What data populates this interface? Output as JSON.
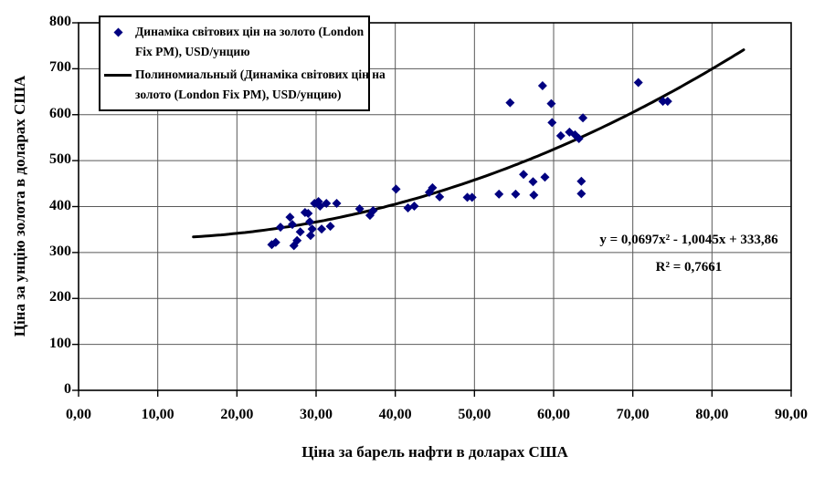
{
  "figure": {
    "x_axis_title": "Ціна за барель нафти в доларах США",
    "y_axis_title": "Ціна за унцію золота в доларах США",
    "equation_line1": "y = 0,0697x² - 1,0045x + 333,86",
    "equation_line2": "R² = 0,7661",
    "legend": {
      "item1": {
        "marker": "diamond-icon",
        "lines": [
          "Динаміка світових цін на золото (London",
          "Fix PM), USD/унцию"
        ]
      },
      "item2": {
        "marker": "trendline-icon",
        "lines": [
          "Полиномиальный (Динаміка світових цін на",
          "золото (London Fix PM), USD/унцию)"
        ]
      }
    }
  },
  "chart_data": {
    "type": "scatter",
    "title": "",
    "xlabel": "Ціна за барель нафти в доларах США",
    "ylabel": "Ціна за унцію золота в доларах США",
    "xlim": [
      0,
      90
    ],
    "ylim": [
      0,
      800
    ],
    "x_ticks": [
      0,
      10,
      20,
      30,
      40,
      50,
      60,
      70,
      80,
      90
    ],
    "x_tick_labels": [
      "0,00",
      "10,00",
      "20,00",
      "30,00",
      "40,00",
      "50,00",
      "60,00",
      "70,00",
      "80,00",
      "90,00"
    ],
    "y_ticks": [
      0,
      100,
      200,
      300,
      400,
      500,
      600,
      700,
      800
    ],
    "y_tick_labels": [
      "0",
      "100",
      "200",
      "300",
      "400",
      "500",
      "600",
      "700",
      "800"
    ],
    "grid": true,
    "legend_position": "top-left-inside",
    "colors": {
      "marker": "#000080",
      "trendline": "#000000",
      "gridline": "#595959",
      "axis": "#000000",
      "background": "#ffffff"
    },
    "series": [
      {
        "name": "Динаміка світових цін на золото (London Fix PM), USD/унцию",
        "type": "scatter",
        "marker": "diamond",
        "color": "#000080",
        "points": [
          [
            24.4,
            317
          ],
          [
            24.9,
            322
          ],
          [
            25.5,
            355
          ],
          [
            26.7,
            377
          ],
          [
            27.0,
            361
          ],
          [
            27.2,
            315
          ],
          [
            27.6,
            326
          ],
          [
            28.0,
            345
          ],
          [
            28.6,
            387
          ],
          [
            29.0,
            385
          ],
          [
            29.2,
            367
          ],
          [
            29.3,
            337
          ],
          [
            29.5,
            351
          ],
          [
            29.8,
            407
          ],
          [
            30.3,
            411
          ],
          [
            30.5,
            401
          ],
          [
            30.7,
            351
          ],
          [
            31.3,
            407
          ],
          [
            31.8,
            357
          ],
          [
            32.6,
            407
          ],
          [
            35.5,
            395
          ],
          [
            36.8,
            381
          ],
          [
            37.2,
            391
          ],
          [
            40.1,
            438
          ],
          [
            41.6,
            397
          ],
          [
            42.4,
            401
          ],
          [
            44.3,
            431
          ],
          [
            44.7,
            441
          ],
          [
            45.6,
            421
          ],
          [
            49.1,
            420
          ],
          [
            49.7,
            420
          ],
          [
            53.1,
            427
          ],
          [
            54.5,
            626
          ],
          [
            55.2,
            427
          ],
          [
            56.2,
            470
          ],
          [
            57.4,
            454
          ],
          [
            57.5,
            425
          ],
          [
            58.6,
            663
          ],
          [
            58.9,
            464
          ],
          [
            59.7,
            624
          ],
          [
            59.8,
            583
          ],
          [
            60.9,
            554
          ],
          [
            62.0,
            562
          ],
          [
            62.7,
            556
          ],
          [
            63.2,
            548
          ],
          [
            63.5,
            455
          ],
          [
            63.5,
            428
          ],
          [
            63.7,
            593
          ],
          [
            70.7,
            670
          ],
          [
            73.8,
            629
          ],
          [
            74.4,
            629
          ]
        ]
      },
      {
        "name": "Полиномиальный (Динаміка світових цін на золото (London Fix PM), USD/унцию)",
        "type": "polynomial-trendline",
        "color": "#000000",
        "coefficients": {
          "a": 0.0697,
          "b": -1.0045,
          "c": 333.86
        },
        "x_range": [
          14.5,
          84.2
        ],
        "equation": "y = 0,0697x² - 1,0045x + 333,86",
        "r_squared": "R² = 0,7661"
      }
    ]
  }
}
